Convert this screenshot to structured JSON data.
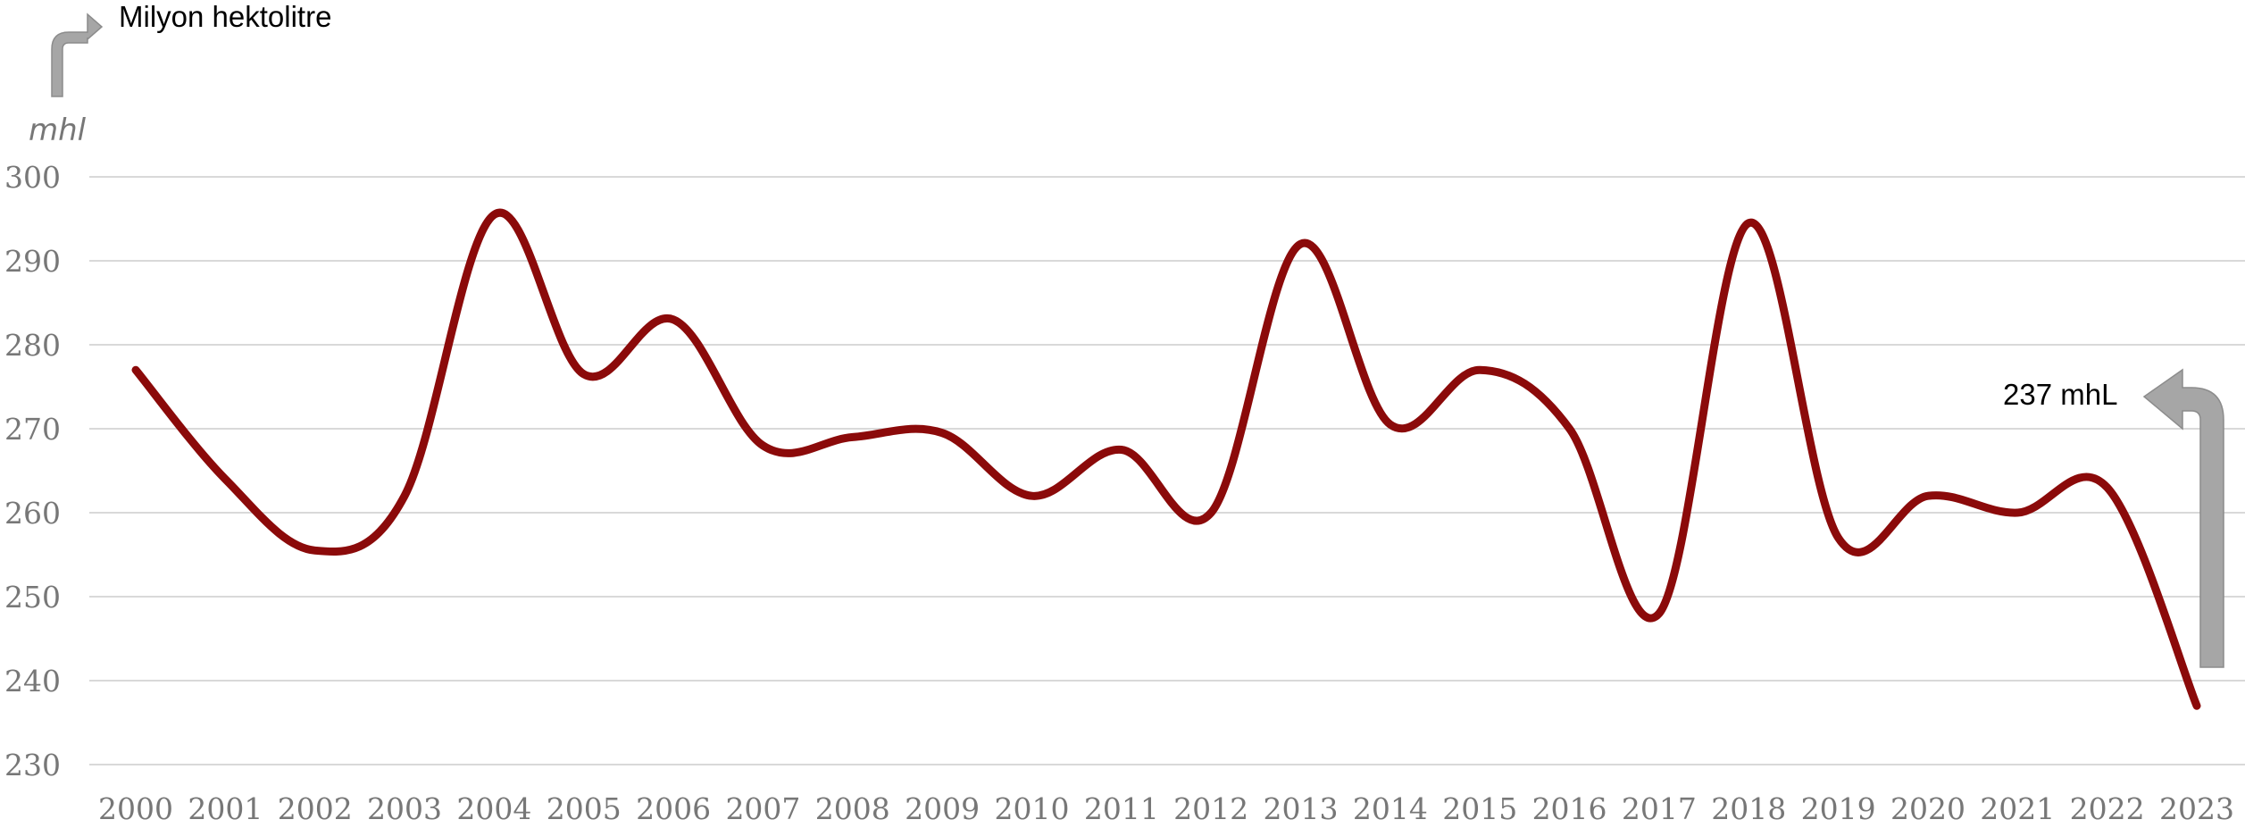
{
  "chart_data": {
    "type": "line",
    "title": "",
    "xlabel": "",
    "ylabel": "mhl",
    "unit_annotation": "Milyon hektolitre",
    "end_annotation": "237 mhL",
    "categories": [
      "2000",
      "2001",
      "2002",
      "2003",
      "2004",
      "2005",
      "2006",
      "2007",
      "2008",
      "2009",
      "2010",
      "2011",
      "2012",
      "2013",
      "2014",
      "2015",
      "2016",
      "2017",
      "2018",
      "2019",
      "2020",
      "2021",
      "2022",
      "2023"
    ],
    "series": [
      {
        "values": [
          277,
          264,
          255.5,
          262,
          295.5,
          276.5,
          283,
          268,
          269,
          269.5,
          262,
          267.5,
          260,
          292,
          270.5,
          277,
          270,
          248,
          294.5,
          257,
          262,
          260,
          263,
          237
        ],
        "color": "#8b0a0a"
      }
    ],
    "yticks": [
      230,
      240,
      250,
      260,
      270,
      280,
      290,
      300
    ],
    "ylim": [
      230,
      300
    ],
    "grid": true,
    "legend": "none",
    "arrow_color": "#a6a6a6"
  }
}
